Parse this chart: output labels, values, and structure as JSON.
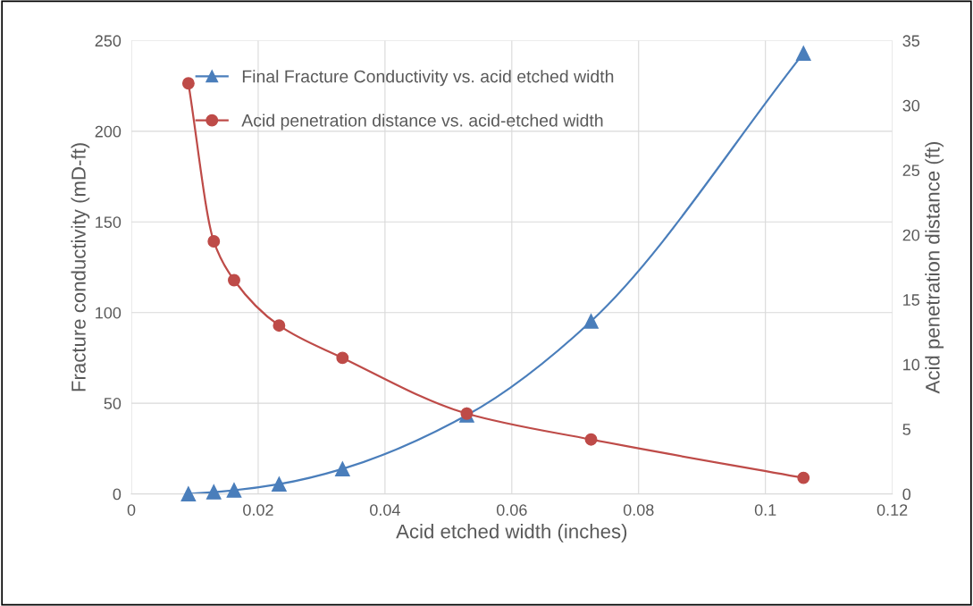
{
  "chart_data": {
    "type": "line",
    "xlabel": "Acid etched width (inches)",
    "ylabel": "Fracture conductivity (mD-ft)",
    "y2label": "Acid penetration distance (ft)",
    "series": [
      {
        "name": "Final Fracture Conductivity vs. acid etched width",
        "color": "#4a7ebb",
        "marker": "triangle",
        "x": [
          0.009,
          0.013,
          0.0162,
          0.0233,
          0.0333,
          0.0529,
          0.0725,
          0.106
        ],
        "values": [
          0,
          1,
          2,
          5.4,
          13.8,
          43.4,
          95.2,
          243
        ]
      },
      {
        "name": "Acid penetration distance vs. acid-etched width",
        "color": "#be4b48",
        "marker": "circle",
        "axis": "y2",
        "x": [
          0.009,
          0.013,
          0.0162,
          0.0233,
          0.0333,
          0.0529,
          0.0725,
          0.106
        ],
        "values": [
          31.7,
          19.5,
          16.5,
          13.0,
          10.5,
          6.2,
          4.2,
          1.24
        ]
      }
    ],
    "xlim": [
      0,
      0.12
    ],
    "xticks": [
      0,
      0.02,
      0.04,
      0.06,
      0.08,
      0.1,
      0.12
    ],
    "ylim": [
      0,
      250
    ],
    "yticks": [
      0,
      50,
      100,
      150,
      200,
      250
    ],
    "y2lim": [
      0,
      35
    ],
    "y2ticks": [
      0,
      5,
      10,
      15,
      20,
      25,
      30,
      35
    ],
    "grid": true,
    "legend": "top",
    "line_style": "solid"
  }
}
